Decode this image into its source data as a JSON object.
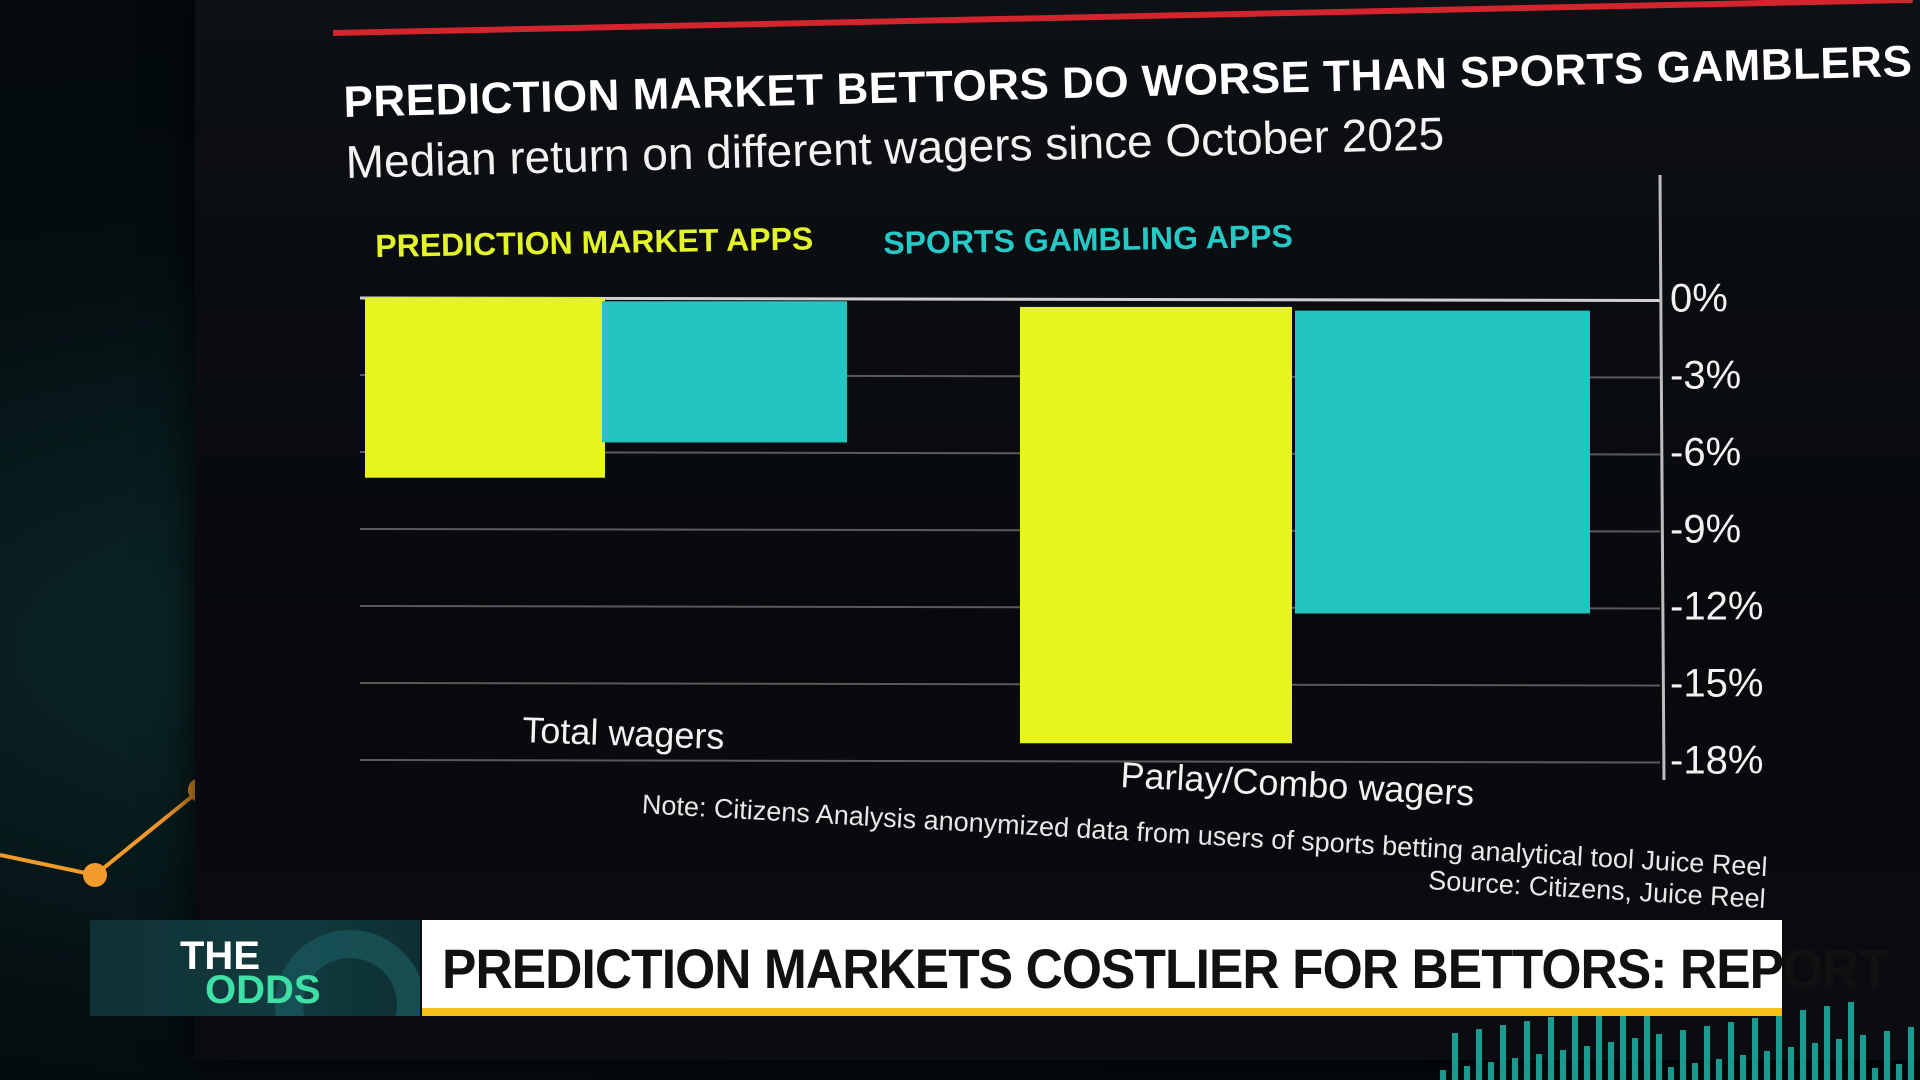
{
  "chart_data": {
    "type": "bar",
    "title": "PREDICTION MARKET BETTORS DO WORSE THAN SPORTS GAMBLERS",
    "subtitle": "Median return on different wagers since October 2025",
    "categories": [
      "Total wagers",
      "Parlay/Combo wagers"
    ],
    "series": [
      {
        "name": "PREDICTION MARKET APPS",
        "color": "#e6f51f",
        "values": [
          -7.0,
          -17.0
        ]
      },
      {
        "name": "SPORTS GAMBLING APPS",
        "color": "#23c5c2",
        "values": [
          -5.5,
          -11.8
        ]
      }
    ],
    "yticks": [
      "0%",
      "-3%",
      "-6%",
      "-9%",
      "-12%",
      "-15%",
      "-18%"
    ],
    "ytick_values": [
      0,
      -3,
      -6,
      -9,
      -12,
      -15,
      -18
    ],
    "ylim": [
      -18,
      0
    ],
    "grid": true,
    "legend": "top",
    "note": "Note: Citizens Analysis anonymized data from users of sports betting analytical tool Juice Reel",
    "source": "Source: Citizens, Juice Reel"
  },
  "lower_third": {
    "show_line1": "THE",
    "show_line2": "ODDS",
    "headline": "PREDICTION MARKETS COSTLIER FOR BETTORS: REPORT"
  },
  "colors": {
    "accent_red": "#d2252d",
    "ticker_yellow": "#f4c21a",
    "show_green": "#3fe0a6"
  }
}
